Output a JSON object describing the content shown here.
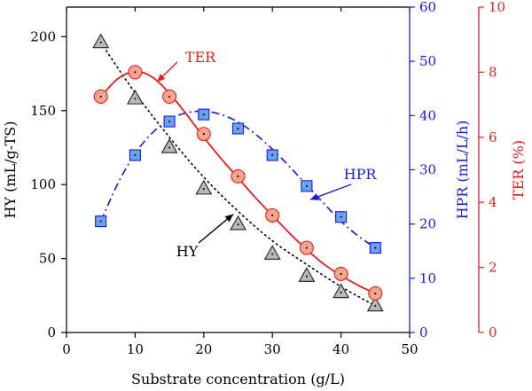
{
  "chart_data": {
    "type": "scatter",
    "xlabel": "Substrate concentration (g/L)",
    "xlim": [
      0,
      50
    ],
    "xticks": [
      0,
      10,
      20,
      30,
      40,
      50
    ],
    "axes": {
      "hy": {
        "label": "HY (mL/g-TS)",
        "lim": [
          0,
          220
        ],
        "ticks": [
          0,
          50,
          100,
          150,
          200
        ],
        "side": "left",
        "color": "#000000"
      },
      "hpr": {
        "label": "HPR (mL/L/h)",
        "lim": [
          0,
          60
        ],
        "ticks": [
          0,
          10,
          20,
          30,
          40,
          50,
          60
        ],
        "side": "right",
        "color": "#1a1ad6"
      },
      "ter": {
        "label": "TER (%)",
        "lim": [
          0,
          10
        ],
        "ticks": [
          0,
          2,
          4,
          6,
          8,
          10
        ],
        "side": "right-outer",
        "color": "#e0201b"
      }
    },
    "x": [
      5,
      10,
      15,
      20,
      25,
      30,
      35,
      40,
      45
    ],
    "series": [
      {
        "name": "HY",
        "axis": "hy",
        "marker": "triangle",
        "line": "dotted",
        "marker_fill": "#b9b9b9",
        "color": "#000000",
        "values": [
          196,
          158,
          125,
          97,
          73,
          53,
          38,
          27,
          18
        ],
        "fit": [
          [
            5,
            196
          ],
          [
            10,
            162
          ],
          [
            15,
            132
          ],
          [
            20,
            105
          ],
          [
            25,
            82
          ],
          [
            30,
            62
          ],
          [
            35,
            46
          ],
          [
            40,
            31
          ],
          [
            45,
            18
          ]
        ]
      },
      {
        "name": "HPR",
        "axis": "hpr",
        "marker": "square",
        "line": "dashdot",
        "marker_fill": "#6aa3ea",
        "color": "#1a1ad6",
        "values": [
          20.5,
          32.7,
          38.9,
          40.2,
          37.6,
          32.7,
          27.0,
          21.3,
          15.6
        ],
        "fit": [
          [
            5,
            20.5
          ],
          [
            7.5,
            27.5
          ],
          [
            10,
            33.0
          ],
          [
            12.5,
            36.8
          ],
          [
            15,
            39.3
          ],
          [
            17.5,
            40.5
          ],
          [
            20,
            40.8
          ],
          [
            22.5,
            40.2
          ],
          [
            25,
            38.8
          ],
          [
            27.5,
            36.6
          ],
          [
            30,
            33.8
          ],
          [
            32.5,
            30.6
          ],
          [
            35,
            27.2
          ],
          [
            37.5,
            23.8
          ],
          [
            40,
            20.5
          ],
          [
            42.5,
            17.8
          ],
          [
            45,
            15.6
          ]
        ]
      },
      {
        "name": "TER",
        "axis": "ter",
        "marker": "circle",
        "line": "solid",
        "marker_fill": "#f3a58f",
        "color": "#e0201b",
        "values": [
          7.25,
          8.0,
          7.25,
          6.1,
          4.8,
          3.6,
          2.6,
          1.8,
          1.2
        ],
        "fit": [
          [
            5,
            7.25
          ],
          [
            7.5,
            7.8
          ],
          [
            10,
            8.02
          ],
          [
            12.5,
            7.85
          ],
          [
            15,
            7.35
          ],
          [
            17.5,
            6.7
          ],
          [
            20,
            6.0
          ],
          [
            22.5,
            5.35
          ],
          [
            25,
            4.75
          ],
          [
            27.5,
            4.15
          ],
          [
            30,
            3.6
          ],
          [
            32.5,
            3.05
          ],
          [
            35,
            2.55
          ],
          [
            37.5,
            2.1
          ],
          [
            40,
            1.75
          ],
          [
            42.5,
            1.45
          ],
          [
            45,
            1.2
          ]
        ]
      }
    ],
    "annotations": [
      {
        "text": "TER",
        "series": "TER",
        "color": "#e0201b"
      },
      {
        "text": "HPR",
        "series": "HPR",
        "color": "#1a1ad6"
      },
      {
        "text": "HY",
        "series": "HY",
        "color": "#000000"
      }
    ]
  }
}
